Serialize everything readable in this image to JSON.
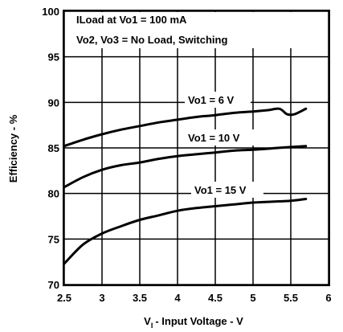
{
  "chart_data": {
    "type": "line",
    "xlabel": "- Input Voltage - V",
    "xlabel_prefix": "V",
    "xlabel_sub": "I",
    "ylabel": "Efficiency - %",
    "xlim": [
      2.5,
      6
    ],
    "ylim": [
      70,
      100
    ],
    "x_ticks": [
      "2.5",
      "3",
      "3.5",
      "4",
      "4.5",
      "5",
      "5.5",
      "6"
    ],
    "y_ticks": [
      "70",
      "75",
      "80",
      "85",
      "90",
      "95",
      "100"
    ],
    "grid": true,
    "annotations": [
      "ILoad at Vo1 = 100 mA",
      "Vo2, Vo3 = No Load, Switching"
    ],
    "series": [
      {
        "name": "Vo1 = 6 V",
        "x": [
          2.5,
          2.75,
          3.0,
          3.25,
          3.5,
          3.75,
          4.0,
          4.25,
          4.5,
          4.75,
          5.0,
          5.2,
          5.35,
          5.45,
          5.55,
          5.7
        ],
        "y": [
          85.2,
          85.9,
          86.5,
          87.0,
          87.4,
          87.8,
          88.1,
          88.4,
          88.6,
          88.85,
          89.0,
          89.15,
          89.3,
          88.7,
          88.7,
          89.3
        ]
      },
      {
        "name": "Vo1 = 10 V",
        "x": [
          2.5,
          2.75,
          3.0,
          3.25,
          3.5,
          3.75,
          4.0,
          4.25,
          4.5,
          4.75,
          5.0,
          5.25,
          5.5,
          5.7
        ],
        "y": [
          80.7,
          81.8,
          82.6,
          83.1,
          83.4,
          83.8,
          84.1,
          84.3,
          84.5,
          84.7,
          84.8,
          84.95,
          85.1,
          85.2
        ]
      },
      {
        "name": "Vo1 = 15 V",
        "x": [
          2.5,
          2.75,
          3.0,
          3.25,
          3.5,
          3.75,
          4.0,
          4.25,
          4.5,
          4.75,
          5.0,
          5.25,
          5.5,
          5.7
        ],
        "y": [
          72.3,
          74.4,
          75.6,
          76.4,
          77.1,
          77.6,
          78.1,
          78.4,
          78.6,
          78.8,
          79.0,
          79.1,
          79.2,
          79.4
        ]
      }
    ]
  },
  "colors": {
    "line": "#000000",
    "grid": "#000000",
    "background": "#ffffff"
  }
}
